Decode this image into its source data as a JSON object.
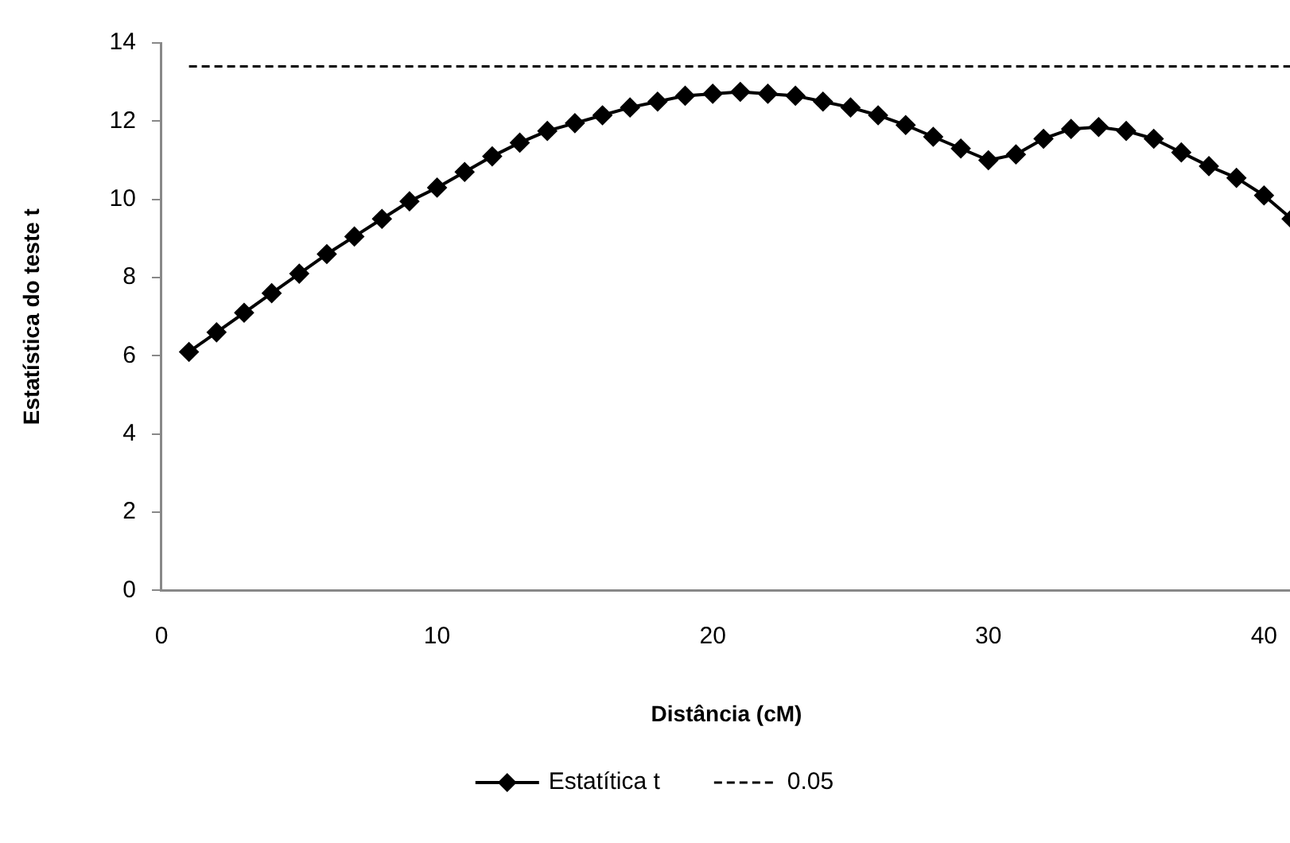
{
  "chart_data": {
    "type": "line",
    "xlabel": "Distância (cM)",
    "ylabel": "Estatística do teste t",
    "x": [
      1,
      2,
      3,
      4,
      5,
      6,
      7,
      8,
      9,
      10,
      11,
      12,
      13,
      14,
      15,
      16,
      17,
      18,
      19,
      20,
      21,
      22,
      23,
      24,
      25,
      26,
      27,
      28,
      29,
      30,
      31,
      32,
      33,
      34,
      35,
      36,
      37,
      38,
      39,
      40,
      41
    ],
    "series": [
      {
        "name": "Estatítica t",
        "color": "#000000",
        "marker": "diamond",
        "line_style": "solid",
        "values": [
          6.1,
          6.6,
          7.1,
          7.6,
          8.1,
          8.6,
          9.05,
          9.5,
          9.95,
          10.3,
          10.7,
          11.1,
          11.45,
          11.75,
          11.95,
          12.15,
          12.35,
          12.5,
          12.65,
          12.7,
          12.75,
          12.7,
          12.65,
          12.5,
          12.35,
          12.15,
          11.9,
          11.6,
          11.3,
          11.0,
          11.15,
          11.55,
          11.8,
          11.85,
          11.75,
          11.55,
          11.2,
          10.85,
          10.55,
          10.1,
          9.5
        ]
      },
      {
        "name": "0.05",
        "color": "#000000",
        "marker": "none",
        "line_style": "dashed",
        "values": [
          13.4,
          13.4,
          13.4,
          13.4,
          13.4,
          13.4,
          13.4,
          13.4,
          13.4,
          13.4,
          13.4,
          13.4,
          13.4,
          13.4,
          13.4,
          13.4,
          13.4,
          13.4,
          13.4,
          13.4,
          13.4,
          13.4,
          13.4,
          13.4,
          13.4,
          13.4,
          13.4,
          13.4,
          13.4,
          13.4,
          13.4,
          13.4,
          13.4,
          13.4,
          13.4,
          13.4,
          13.4,
          13.4,
          13.4,
          13.4,
          13.4
        ]
      }
    ],
    "xlim": [
      0,
      41
    ],
    "xticks": [
      0,
      10,
      20,
      30,
      40
    ],
    "ylim": [
      0,
      14
    ],
    "yticks": [
      0,
      2,
      4,
      6,
      8,
      10,
      12,
      14
    ],
    "grid": false,
    "legend": "bottom"
  }
}
